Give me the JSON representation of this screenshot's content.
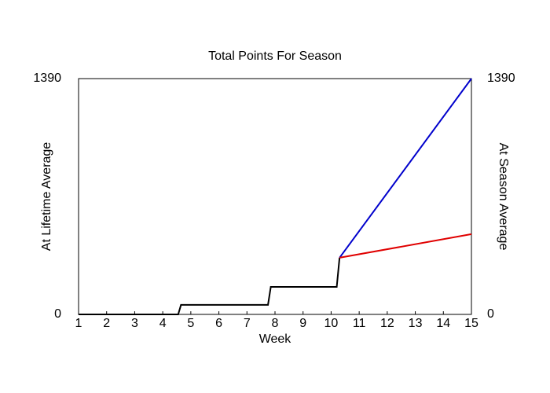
{
  "chart_data": {
    "type": "line",
    "title": "Total Points For Season",
    "xlabel": "Week",
    "ylabel": "At Lifetime Average",
    "ylabel_color": "#0000cc",
    "y2label": "At Season Average",
    "y2label_color": "#e00000",
    "xlim": [
      1,
      15
    ],
    "xticks": [
      1,
      2,
      3,
      4,
      5,
      6,
      7,
      8,
      9,
      10,
      11,
      12,
      13,
      14,
      15
    ],
    "ylim": [
      0,
      1390
    ],
    "yticks": [
      0,
      1390
    ],
    "y2lim": [
      0,
      1390
    ],
    "y2ticks": [
      0,
      1390
    ],
    "series": [
      {
        "color": "#000000",
        "x": [
          1,
          4.55,
          4.65,
          7.75,
          7.85,
          10.2,
          10.3
        ],
        "values": [
          0,
          0,
          56,
          56,
          162,
          162,
          334
        ]
      },
      {
        "color": "#0000cc",
        "x": [
          10.3,
          15
        ],
        "values": [
          334,
          1390
        ]
      },
      {
        "color": "#e00000",
        "axis": "y2",
        "x": [
          10.3,
          15
        ],
        "values": [
          334,
          473
        ]
      }
    ]
  }
}
